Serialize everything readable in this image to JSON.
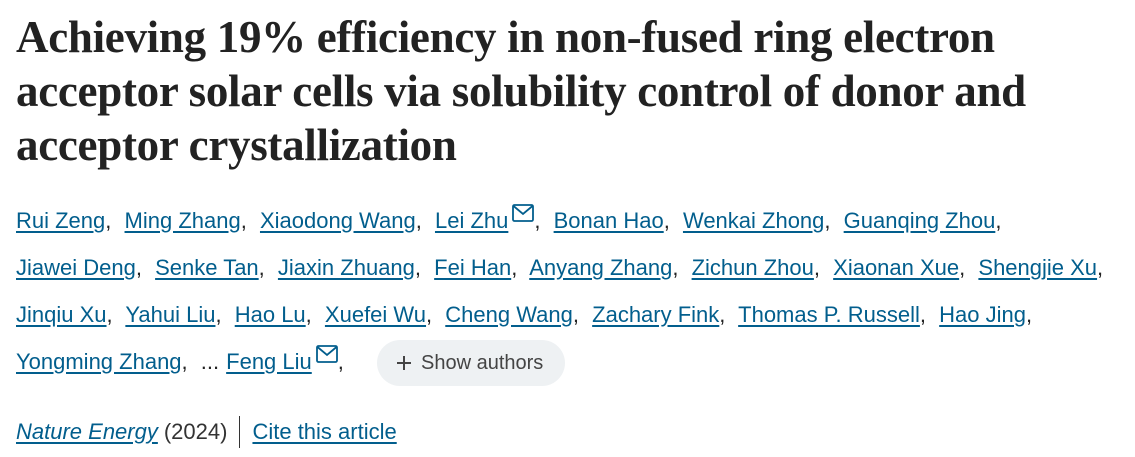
{
  "header": {
    "title": "Achieving 19% efficiency in non-fused ring electron acceptor solar cells via solubility control of donor and acceptor crystallization"
  },
  "authors": {
    "list": [
      {
        "name": "Rui Zeng"
      },
      {
        "name": "Ming Zhang"
      },
      {
        "name": "Xiaodong Wang"
      },
      {
        "name": "Lei Zhu",
        "corresponding": true
      },
      {
        "name": "Bonan Hao"
      },
      {
        "name": "Wenkai Zhong"
      },
      {
        "name": "Guanqing Zhou"
      },
      {
        "name": "Jiawei Deng"
      },
      {
        "name": "Senke Tan"
      },
      {
        "name": "Jiaxin Zhuang"
      },
      {
        "name": "Fei Han"
      },
      {
        "name": "Anyang Zhang"
      },
      {
        "name": "Zichun Zhou"
      },
      {
        "name": "Xiaonan Xue"
      },
      {
        "name": "Shengjie Xu"
      },
      {
        "name": "Jinqiu Xu"
      },
      {
        "name": "Yahui Liu"
      },
      {
        "name": "Hao Lu"
      },
      {
        "name": "Xuefei Wu"
      },
      {
        "name": "Cheng Wang"
      },
      {
        "name": "Zachary Fink"
      },
      {
        "name": "Thomas P. Russell"
      },
      {
        "name": "Hao Jing"
      },
      {
        "name": "Yongming Zhang"
      },
      {
        "name": "Feng Liu",
        "corresponding": true
      }
    ],
    "separator": ",",
    "ellipsis": "...",
    "show_authors": "Show authors"
  },
  "citation": {
    "journal": "Nature Energy",
    "year": "(2024)",
    "cite": "Cite this article"
  }
}
